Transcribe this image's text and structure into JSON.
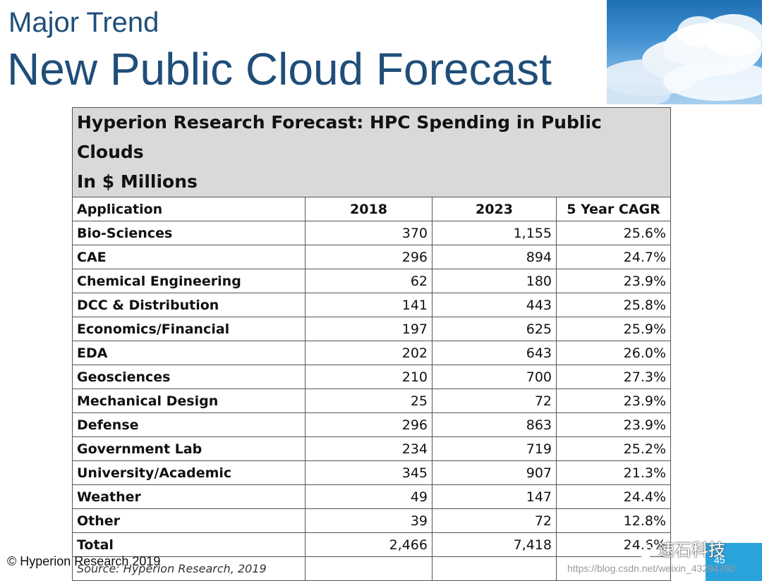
{
  "header": {
    "subtitle": "Major Trend",
    "title": "New Public Cloud Forecast"
  },
  "table": {
    "caption_line1": "Hyperion Research Forecast: HPC Spending in Public Clouds",
    "caption_line2": "In $ Millions",
    "columns": [
      "Application",
      "2018",
      "2023",
      "5 Year CAGR"
    ],
    "rows": [
      [
        "Bio-Sciences",
        "370",
        "1,155",
        "25.6%"
      ],
      [
        "CAE",
        "296",
        "894",
        "24.7%"
      ],
      [
        "Chemical Engineering",
        "62",
        "180",
        "23.9%"
      ],
      [
        "DCC & Distribution",
        "141",
        "443",
        "25.8%"
      ],
      [
        "Economics/Financial",
        "197",
        "625",
        "25.9%"
      ],
      [
        "EDA",
        "202",
        "643",
        "26.0%"
      ],
      [
        "Geosciences",
        "210",
        "700",
        "27.3%"
      ],
      [
        "Mechanical Design",
        "25",
        "72",
        "23.9%"
      ],
      [
        "Defense",
        "296",
        "863",
        "23.9%"
      ],
      [
        "Government Lab",
        "234",
        "719",
        "25.2%"
      ],
      [
        "University/Academic",
        "345",
        "907",
        "21.3%"
      ],
      [
        "Weather",
        "49",
        "147",
        "24.4%"
      ],
      [
        "Other",
        "39",
        "72",
        "12.8%"
      ]
    ],
    "total": [
      "Total",
      "2,466",
      "7,418",
      "24.6%"
    ],
    "source": "Source: Hyperion Research, 2019"
  },
  "footer": {
    "copyright": "© Hyperion Research 2019",
    "page_number": "45",
    "wechat_brand": "速石科技",
    "watermark_url": "https://blog.csdn.net/weixin_43294760"
  },
  "colors": {
    "title": "#1f4e79",
    "caption_bg": "#d9d9d9",
    "brand_box": "#2aa3dc"
  }
}
